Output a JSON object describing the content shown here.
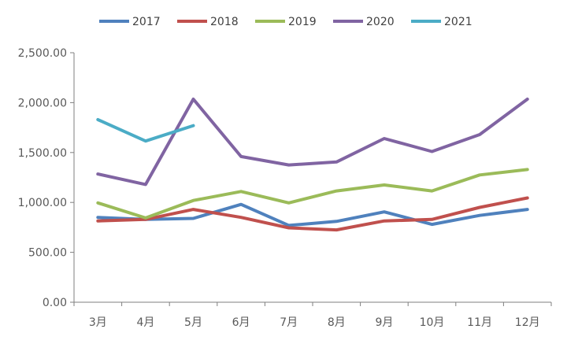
{
  "chart_data": {
    "type": "line",
    "title": "",
    "xlabel": "",
    "ylabel": "",
    "categories": [
      "3月",
      "4月",
      "5月",
      "6月",
      "7月",
      "8月",
      "9月",
      "10月",
      "11月",
      "12月"
    ],
    "ylim": [
      0,
      2500
    ],
    "yticks": [
      "0.00",
      "500.00",
      "1,000.00",
      "1,500.00",
      "2,000.00",
      "2,500.00"
    ],
    "ytick_values": [
      0,
      500,
      1000,
      1500,
      2000,
      2500
    ],
    "grid": false,
    "legend_position": "top",
    "series": [
      {
        "name": "2017",
        "color": "#4f81bd",
        "values": [
          850,
          830,
          840,
          980,
          770,
          810,
          905,
          780,
          870,
          930
        ]
      },
      {
        "name": "2018",
        "color": "#c0504d",
        "values": [
          815,
          830,
          930,
          850,
          745,
          725,
          815,
          830,
          950,
          1045
        ]
      },
      {
        "name": "2019",
        "color": "#9bbb59",
        "values": [
          995,
          845,
          1020,
          1110,
          995,
          1115,
          1175,
          1115,
          1275,
          1330
        ]
      },
      {
        "name": "2020",
        "color": "#8064a2",
        "values": [
          1285,
          1180,
          2035,
          1460,
          1375,
          1405,
          1640,
          1510,
          1680,
          2035
        ]
      },
      {
        "name": "2021",
        "color": "#4bacc6",
        "values": [
          1830,
          1615,
          1770,
          null,
          null,
          null,
          null,
          null,
          null,
          null
        ]
      }
    ]
  }
}
